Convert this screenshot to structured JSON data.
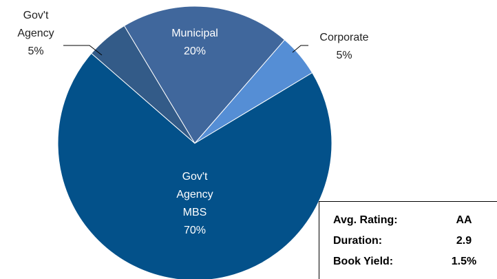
{
  "chart_data": {
    "type": "pie",
    "categories": [
      "Gov't Agency MBS",
      "Gov't Agency",
      "Municipal",
      "Corporate"
    ],
    "values": [
      70,
      5,
      20,
      5
    ],
    "value_labels": [
      "70%",
      "5%",
      "20%",
      "5%"
    ],
    "colors": [
      "#03518a",
      "#335b88",
      "#40679c",
      "#558ed5"
    ]
  },
  "stats": [
    [
      "Avg. Rating:",
      "AA"
    ],
    [
      "Duration:",
      "2.9"
    ],
    [
      "Book Yield:",
      "1.5%"
    ]
  ]
}
